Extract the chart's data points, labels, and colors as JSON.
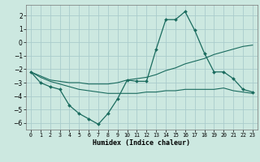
{
  "xlabel": "Humidex (Indice chaleur)",
  "background_color": "#cce8e0",
  "grid_color": "#aacccc",
  "line_color": "#1a6b5e",
  "x_ticks": [
    0,
    1,
    2,
    3,
    4,
    5,
    6,
    7,
    8,
    9,
    10,
    11,
    12,
    13,
    14,
    15,
    16,
    17,
    18,
    19,
    20,
    21,
    22,
    23
  ],
  "ylim": [
    -6.5,
    2.8
  ],
  "xlim": [
    -0.5,
    23.5
  ],
  "line1_x": [
    0,
    1,
    2,
    3,
    4,
    5,
    6,
    7,
    8,
    9,
    10,
    11,
    12,
    13,
    14,
    15,
    16,
    17,
    18,
    19,
    20,
    21,
    22,
    23
  ],
  "line1_y": [
    -2.2,
    -3.0,
    -3.3,
    -3.5,
    -4.7,
    -5.3,
    -5.7,
    -6.1,
    -5.3,
    -4.2,
    -2.8,
    -2.9,
    -2.9,
    -0.5,
    1.7,
    1.7,
    2.3,
    0.9,
    -0.8,
    -2.2,
    -2.2,
    -2.7,
    -3.5,
    -3.7
  ],
  "line2_x": [
    0,
    1,
    2,
    3,
    4,
    5,
    6,
    7,
    8,
    9,
    10,
    11,
    12,
    13,
    14,
    15,
    16,
    17,
    18,
    19,
    20,
    21,
    22,
    23
  ],
  "line2_y": [
    -2.2,
    -2.5,
    -2.8,
    -2.9,
    -3.0,
    -3.0,
    -3.1,
    -3.1,
    -3.1,
    -3.0,
    -2.8,
    -2.7,
    -2.6,
    -2.4,
    -2.1,
    -1.9,
    -1.6,
    -1.4,
    -1.2,
    -0.9,
    -0.7,
    -0.5,
    -0.3,
    -0.2
  ],
  "line3_x": [
    0,
    1,
    2,
    3,
    4,
    5,
    6,
    7,
    8,
    9,
    10,
    11,
    12,
    13,
    14,
    15,
    16,
    17,
    18,
    19,
    20,
    21,
    22,
    23
  ],
  "line3_y": [
    -2.2,
    -2.6,
    -2.9,
    -3.1,
    -3.3,
    -3.5,
    -3.6,
    -3.7,
    -3.8,
    -3.8,
    -3.8,
    -3.8,
    -3.7,
    -3.7,
    -3.6,
    -3.6,
    -3.5,
    -3.5,
    -3.5,
    -3.5,
    -3.4,
    -3.6,
    -3.7,
    -3.8
  ]
}
